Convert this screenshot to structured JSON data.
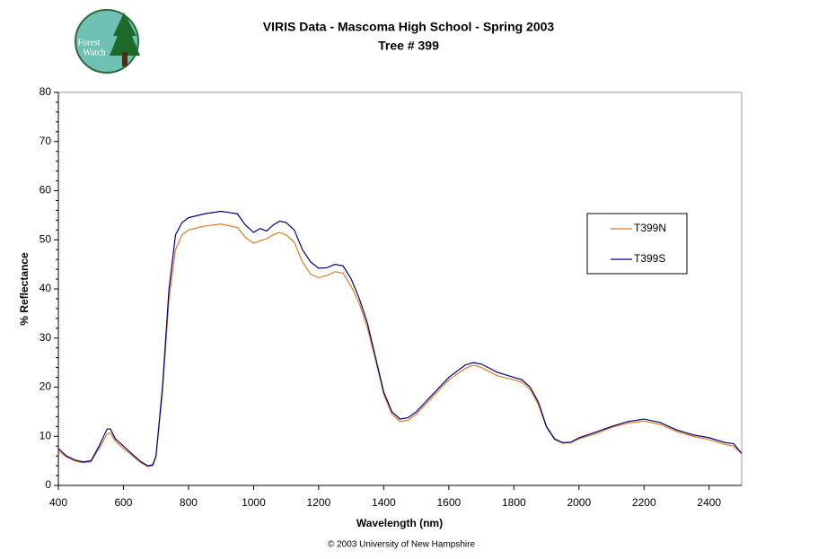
{
  "logo": {
    "line1": "Forest",
    "line2": "Watch"
  },
  "footer": "© 2003 University of New Hampshire",
  "chart_data": {
    "type": "line",
    "title": "VIRIS Data - Mascoma High School - Spring 2003",
    "subtitle": "Tree # 399",
    "x_label": "Wavelength (nm)",
    "y_label": "% Reflectance",
    "xlim": [
      400,
      2500
    ],
    "xticks": [
      400,
      600,
      800,
      1000,
      1200,
      1400,
      1600,
      1800,
      2000,
      2200,
      2400
    ],
    "ylim": [
      0,
      80
    ],
    "yticks": [
      0,
      10,
      20,
      30,
      40,
      50,
      60,
      70,
      80
    ],
    "legend": "right",
    "x": [
      400,
      425,
      450,
      475,
      500,
      525,
      550,
      560,
      575,
      600,
      625,
      650,
      675,
      690,
      700,
      720,
      740,
      760,
      780,
      800,
      850,
      900,
      950,
      975,
      1000,
      1020,
      1040,
      1060,
      1080,
      1100,
      1125,
      1150,
      1175,
      1200,
      1225,
      1250,
      1275,
      1300,
      1325,
      1350,
      1375,
      1400,
      1425,
      1450,
      1475,
      1500,
      1550,
      1600,
      1650,
      1675,
      1700,
      1750,
      1800,
      1825,
      1850,
      1875,
      1900,
      1925,
      1950,
      1975,
      2000,
      2050,
      2100,
      2150,
      2200,
      2250,
      2300,
      2350,
      2400,
      2450,
      2475,
      2500
    ],
    "series": [
      {
        "name": "T399N",
        "color": "#e07b24",
        "values": [
          7,
          5.8,
          5,
          4.6,
          4.8,
          7.5,
          10.5,
          10.7,
          9,
          7.5,
          6.2,
          4.8,
          3.8,
          4,
          5.8,
          19,
          38,
          48,
          51,
          52,
          52.8,
          53.2,
          52.5,
          50.5,
          49.3,
          49.8,
          50.2,
          51,
          51.5,
          51,
          49.5,
          45.5,
          43,
          42.3,
          42.7,
          43.5,
          43.2,
          40.5,
          37,
          32,
          25.5,
          18.5,
          14.5,
          13,
          13.3,
          14.5,
          18,
          21.5,
          23.8,
          24.5,
          24,
          22.3,
          21.5,
          21,
          19.5,
          16.5,
          11.8,
          9.3,
          8.6,
          8.7,
          9.5,
          10.5,
          11.8,
          12.7,
          13.1,
          12.4,
          11,
          10,
          9.3,
          8.3,
          8,
          6.5
        ]
      },
      {
        "name": "T399S",
        "color": "#000080",
        "values": [
          7.5,
          6,
          5.2,
          4.8,
          5,
          8,
          11.5,
          11.5,
          9.5,
          8,
          6.5,
          5,
          4,
          4.2,
          6,
          20,
          40,
          51,
          53.5,
          54.5,
          55.3,
          55.8,
          55.3,
          53,
          51.5,
          52.3,
          51.8,
          53,
          53.8,
          53.5,
          52,
          48,
          45.5,
          44.2,
          44.3,
          45,
          44.7,
          42,
          38,
          33,
          26,
          19,
          15,
          13.5,
          13.8,
          15,
          18.5,
          22,
          24.5,
          25,
          24.7,
          23,
          22,
          21.5,
          20,
          17,
          12,
          9.5,
          8.7,
          8.8,
          9.7,
          10.8,
          12,
          13,
          13.5,
          12.8,
          11.3,
          10.3,
          9.7,
          8.7,
          8.5,
          6.5
        ]
      }
    ]
  }
}
